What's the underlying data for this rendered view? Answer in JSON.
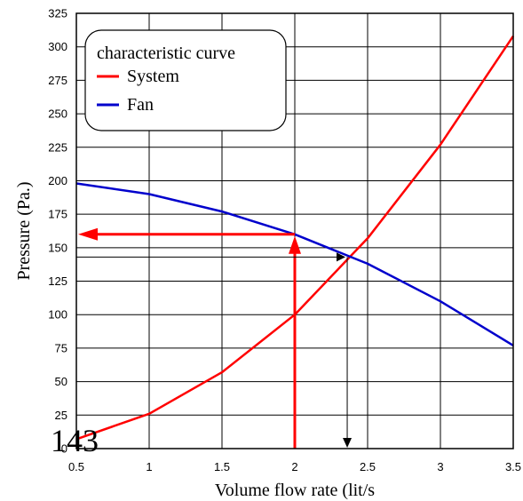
{
  "chart_data": {
    "type": "line",
    "x": [
      0.5,
      1,
      1.5,
      2,
      2.5,
      3,
      3.5
    ],
    "series": [
      {
        "name": "System",
        "color": "#ff0000",
        "values": [
          7,
          26,
          57,
          100,
          157,
          227,
          308
        ]
      },
      {
        "name": "Fan",
        "color": "#0000cc",
        "values": [
          198,
          190,
          177,
          160,
          138,
          110,
          77
        ]
      }
    ],
    "xlabel": "Volume flow rate (lit/s",
    "ylabel": "Pressure (Pa.)",
    "xlim": [
      0.5,
      3.5
    ],
    "ylim": [
      0,
      325
    ],
    "x_ticks": [
      "0.5",
      "1",
      "1.5",
      "2",
      "2.5",
      "3",
      "3.5"
    ],
    "y_ticks": [
      "0",
      "25",
      "50",
      "75",
      "100",
      "125",
      "150",
      "175",
      "200",
      "225",
      "250",
      "275",
      "300",
      "325"
    ],
    "grid": true,
    "legend": {
      "title": "characteristic curve",
      "position": "top-left"
    },
    "annotations": {
      "operating_flow": 2,
      "operating_pressure": 160,
      "intersection_flow": 2.36,
      "intersection_pressure": 143,
      "overlay_value": "143",
      "arrow_color": "#ff0000",
      "guide_color": "#000000"
    }
  }
}
